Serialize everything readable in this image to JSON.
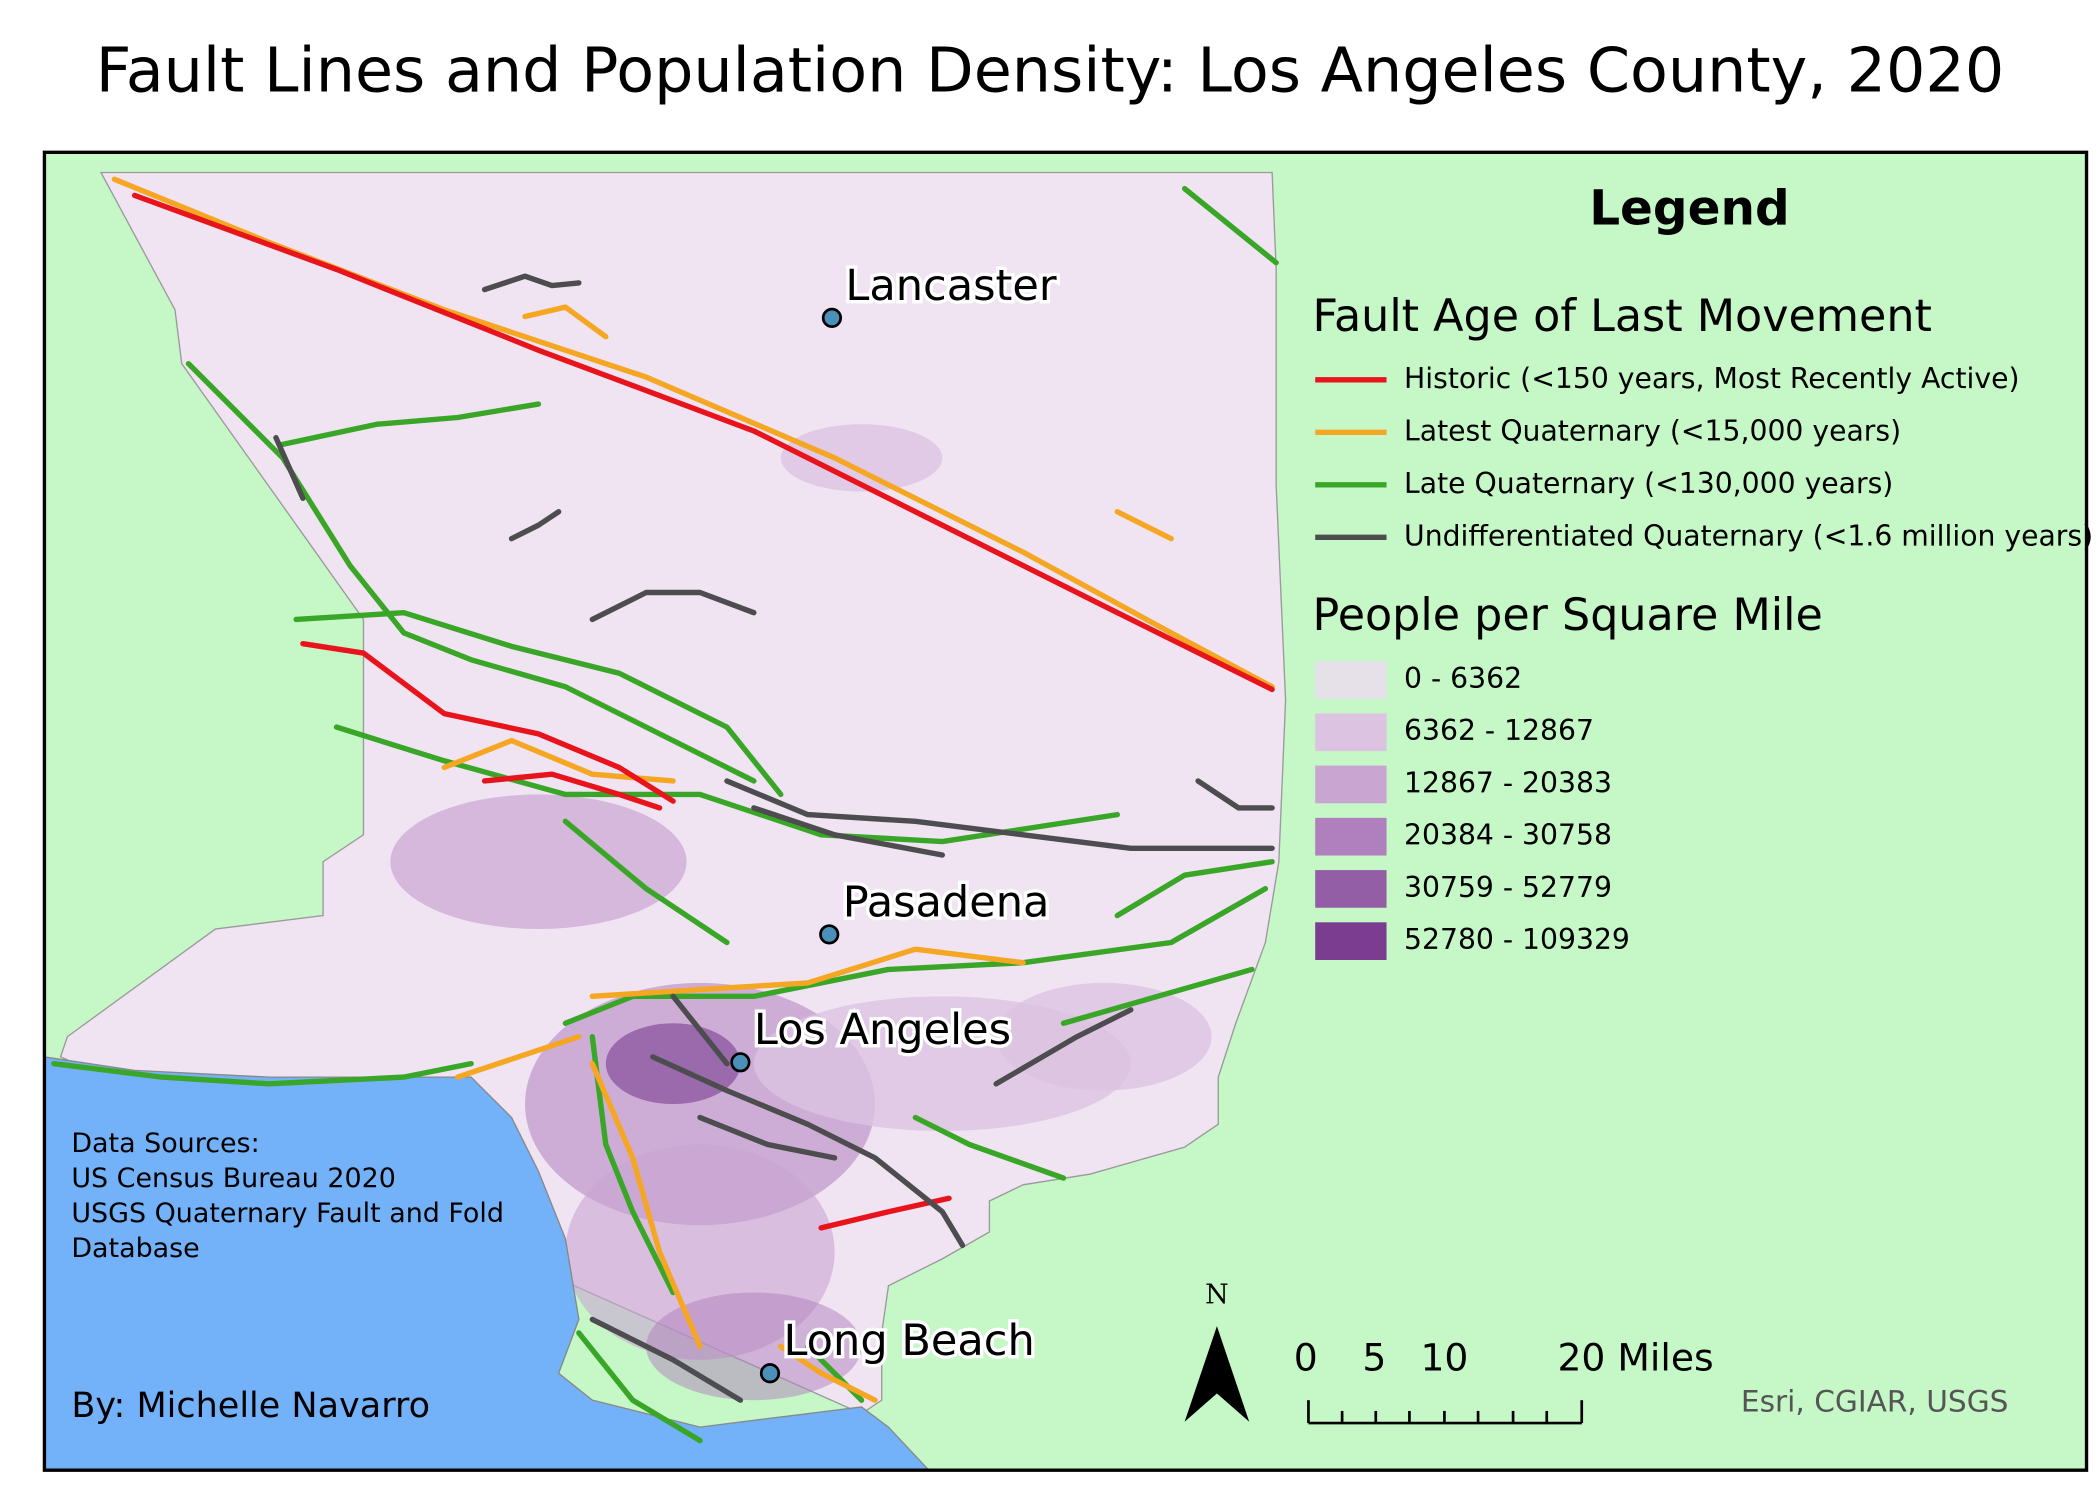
{
  "header": {
    "title": "Fault Lines and Population Density: Los Angeles County, 2020"
  },
  "cities": [
    {
      "label": "Lancaster"
    },
    {
      "label": "Pasadena"
    },
    {
      "label": "Los Angeles"
    },
    {
      "label": "Long Beach"
    }
  ],
  "legend": {
    "title": "Legend",
    "faults": {
      "title": "Fault Age of Last Movement",
      "items": [
        {
          "label": "Historic (<150 years, Most Recently Active)",
          "color": "#e8141c"
        },
        {
          "label": "Latest Quaternary (<15,000 years)",
          "color": "#f5a623"
        },
        {
          "label": "Late Quaternary (<130,000 years)",
          "color": "#3aa628"
        },
        {
          "label": "Undifferentiated Quaternary (<1.6 million years)",
          "color": "#4d4d4f"
        }
      ]
    },
    "density": {
      "title": "People per Square Mile",
      "items": [
        {
          "label": "0 - 6362",
          "color": "#e6e1e9"
        },
        {
          "label": "6362 - 12867",
          "color": "#dcc3e1"
        },
        {
          "label": "12867 - 20383",
          "color": "#c9a5d2"
        },
        {
          "label": "20384 - 30758",
          "color": "#b07fbd"
        },
        {
          "label": "30759 - 52779",
          "color": "#935ea5"
        },
        {
          "label": "52780 - 109329",
          "color": "#7a3d8f"
        }
      ]
    }
  },
  "sources": {
    "lines": [
      "Data Sources:",
      "US Census Bureau 2020",
      "USGS Quaternary Fault and Fold",
      "Database"
    ]
  },
  "author": "By: Michelle Navarro",
  "credits": "Esri, CGIAR, USGS",
  "north_arrow": {
    "label": "N"
  },
  "scale_bar": {
    "labels": [
      "0",
      "5",
      "10",
      "20 Miles"
    ]
  }
}
